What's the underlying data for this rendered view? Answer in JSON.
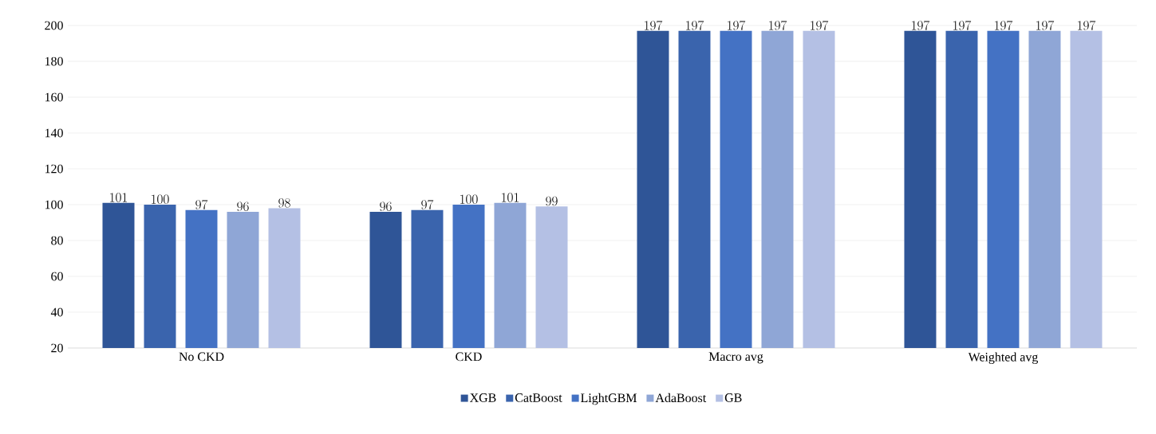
{
  "chart_data": {
    "type": "bar",
    "categories": [
      "No CKD",
      "CKD",
      "Macro avg",
      "Weighted avg"
    ],
    "series": [
      {
        "name": "XGB",
        "color": "#2f5597",
        "values": [
          101,
          96,
          197,
          197
        ]
      },
      {
        "name": "CatBoost",
        "color": "#3a64ad",
        "values": [
          100,
          97,
          197,
          197
        ]
      },
      {
        "name": "LightGBM",
        "color": "#4472c4",
        "values": [
          97,
          100,
          197,
          197
        ]
      },
      {
        "name": "AdaBoost",
        "color": "#8fa6d6",
        "values": [
          96,
          101,
          197,
          197
        ]
      },
      {
        "name": "GB",
        "color": "#b4c0e4",
        "values": [
          98,
          99,
          197,
          197
        ]
      }
    ],
    "ylim": [
      20,
      200
    ],
    "yticks": [
      20,
      40,
      60,
      80,
      100,
      120,
      140,
      160,
      180,
      200
    ],
    "grid": "y",
    "legend": "bottom",
    "data_labels": true
  }
}
